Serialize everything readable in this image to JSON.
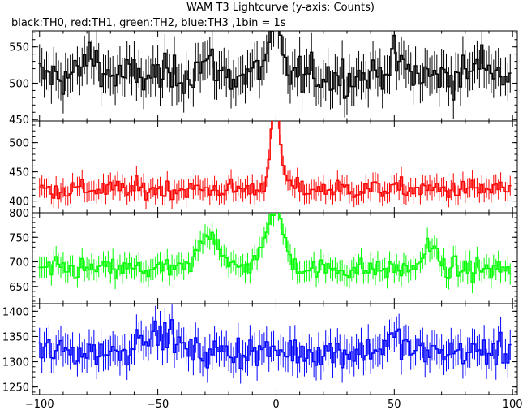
{
  "chart_data": {
    "type": "line",
    "title": "WAM T3 Lightcurve (y-axis: Counts)",
    "subtitle": "black:TH0, red:TH1, green:TH2, blue:TH3 ,1bin = 1s",
    "xlim": [
      -103,
      102
    ],
    "x_ticks": [
      -100,
      -50,
      0,
      50,
      100
    ],
    "x_tick_labels": [
      "−100",
      "−50",
      "0",
      "50",
      "100"
    ],
    "bin_width": 1,
    "grid": false,
    "panels": [
      {
        "name": "TH0",
        "color": "#000000",
        "ylim": [
          448,
          572
        ],
        "y_ticks": [
          450,
          500,
          550
        ],
        "y_tick_labels": [
          "450",
          "500",
          "550"
        ],
        "baseline": 510,
        "noise": 22,
        "features": [
          {
            "x": -78,
            "amp": 28,
            "width": 3
          },
          {
            "x": -30,
            "amp": 18,
            "width": 4
          },
          {
            "x": -2,
            "amp": 25,
            "width": 4
          },
          {
            "x": 0,
            "amp": 38,
            "width": 2
          },
          {
            "x": 50,
            "amp": 20,
            "width": 4
          },
          {
            "x": 88,
            "amp": 18,
            "width": 4
          }
        ]
      },
      {
        "name": "TH1",
        "color": "#ff0000",
        "ylim": [
          380,
          537
        ],
        "y_ticks": [
          400,
          450,
          500
        ],
        "y_tick_labels": [
          "400",
          "450",
          "500"
        ],
        "baseline": 420,
        "noise": 14,
        "features": [
          {
            "x": -2,
            "amp": 50,
            "width": 1.5
          },
          {
            "x": 0,
            "amp": 100,
            "width": 1.2
          },
          {
            "x": 1,
            "amp": 40,
            "width": 3
          }
        ]
      },
      {
        "name": "TH2",
        "color": "#00ff00",
        "ylim": [
          615,
          800
        ],
        "y_ticks": [
          650,
          700,
          750,
          800
        ],
        "y_tick_labels": [
          "650",
          "700",
          "750",
          "800"
        ],
        "baseline": 685,
        "noise": 18,
        "features": [
          {
            "x": -30,
            "amp": 60,
            "width": 3
          },
          {
            "x": -25,
            "amp": 45,
            "width": 3
          },
          {
            "x": -5,
            "amp": 40,
            "width": 4
          },
          {
            "x": 0,
            "amp": 85,
            "width": 2
          },
          {
            "x": 2,
            "amp": 40,
            "width": 4
          },
          {
            "x": 65,
            "amp": 45,
            "width": 3
          }
        ]
      },
      {
        "name": "TH3",
        "color": "#0000ff",
        "ylim": [
          1235,
          1415
        ],
        "y_ticks": [
          1250,
          1300,
          1350,
          1400
        ],
        "y_tick_labels": [
          "1250",
          "1300",
          "1350",
          "1400"
        ],
        "baseline": 1320,
        "noise": 25,
        "features": [
          {
            "x": -55,
            "amp": 40,
            "width": 4
          },
          {
            "x": -45,
            "amp": 35,
            "width": 3
          },
          {
            "x": 50,
            "amp": 25,
            "width": 4
          }
        ]
      }
    ]
  }
}
